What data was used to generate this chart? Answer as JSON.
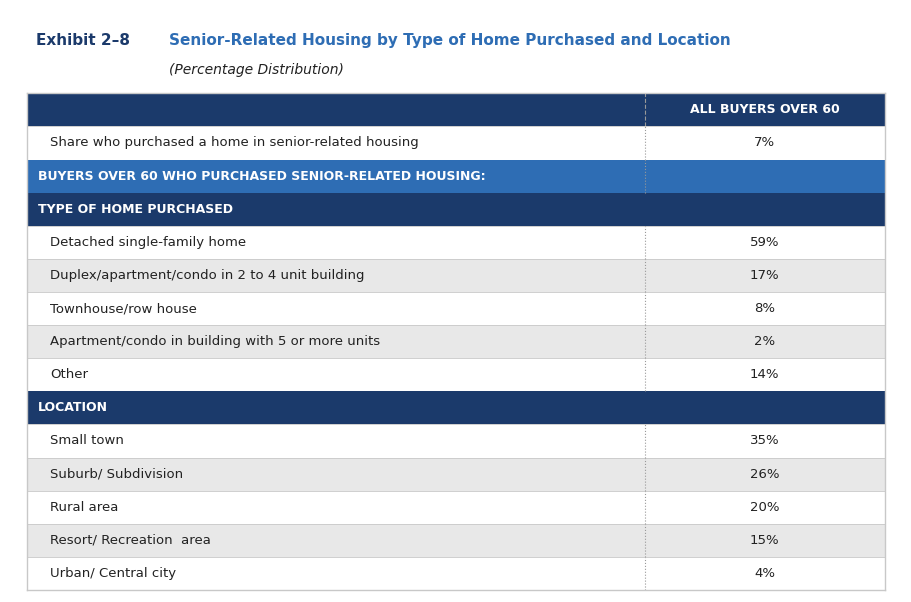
{
  "exhibit_label": "Exhibit 2–8",
  "title": "Senior-Related Housing by Type of Home Purchased and Location",
  "subtitle": "(Percentage Distribution)",
  "column_header": "ALL BUYERS OVER 60",
  "rows": [
    {
      "label": "Share who purchased a home in senior-related housing",
      "value": "7%",
      "type": "data_white"
    },
    {
      "label": "BUYERS OVER 60 WHO PURCHASED SENIOR-RELATED HOUSING:",
      "value": "",
      "type": "section_blue"
    },
    {
      "label": "TYPE OF HOME PURCHASED",
      "value": "",
      "type": "header_dark"
    },
    {
      "label": "Detached single-family home",
      "value": "59%",
      "type": "data_white"
    },
    {
      "label": "Duplex/apartment/condo in 2 to 4 unit building",
      "value": "17%",
      "type": "data_gray"
    },
    {
      "label": "Townhouse/row house",
      "value": "8%",
      "type": "data_white"
    },
    {
      "label": "Apartment/condo in building with 5 or more units",
      "value": "2%",
      "type": "data_gray"
    },
    {
      "label": "Other",
      "value": "14%",
      "type": "data_white"
    },
    {
      "label": "LOCATION",
      "value": "",
      "type": "header_dark"
    },
    {
      "label": "Small town",
      "value": "35%",
      "type": "data_white"
    },
    {
      "label": "Suburb/ Subdivision",
      "value": "26%",
      "type": "data_gray"
    },
    {
      "label": "Rural area",
      "value": "20%",
      "type": "data_white"
    },
    {
      "label": "Resort/ Recreation  area",
      "value": "15%",
      "type": "data_gray"
    },
    {
      "label": "Urban/ Central city",
      "value": "4%",
      "type": "data_white"
    }
  ],
  "colors": {
    "dark_blue": "#1B3A6B",
    "medium_blue": "#2E6DB4",
    "white": "#FFFFFF",
    "light_gray": "#E8E8E8",
    "medium_gray": "#C8C8C8",
    "text_dark": "#222222",
    "text_white": "#FFFFFF",
    "dotted_line": "#999999",
    "background": "#FFFFFF"
  },
  "exhibit_color": "#1B3A6B",
  "title_color": "#2E6DB4",
  "col_split": 0.72
}
